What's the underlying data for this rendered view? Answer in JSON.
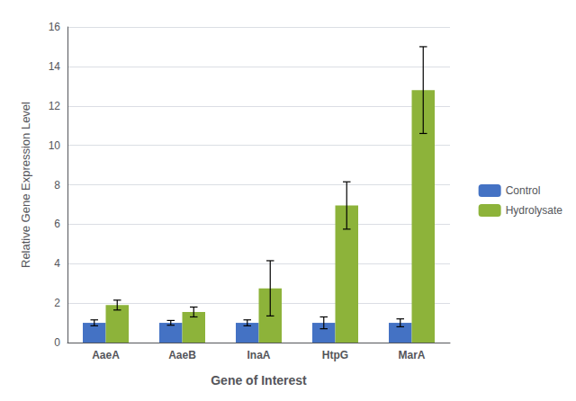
{
  "chart_data": {
    "type": "bar",
    "categories": [
      "AaeA",
      "AaeB",
      "InaA",
      "HtpG",
      "MarA"
    ],
    "series": [
      {
        "name": "Control",
        "color": "#4472C4",
        "values": [
          1.0,
          1.0,
          1.0,
          1.0,
          1.0
        ],
        "errors": [
          0.15,
          0.12,
          0.15,
          0.3,
          0.2
        ]
      },
      {
        "name": "Hydrolysate",
        "color": "#8DB33A",
        "values": [
          1.9,
          1.55,
          2.75,
          6.95,
          12.8
        ],
        "errors": [
          0.25,
          0.25,
          1.4,
          1.2,
          2.2
        ]
      }
    ],
    "xlabel": "Gene of Interest",
    "ylabel": "Relative Gene Expression Level",
    "ylim": [
      0,
      16
    ],
    "yticks": [
      0,
      2,
      4,
      6,
      8,
      10,
      12,
      14,
      16
    ],
    "grid": true,
    "legend": "right"
  }
}
